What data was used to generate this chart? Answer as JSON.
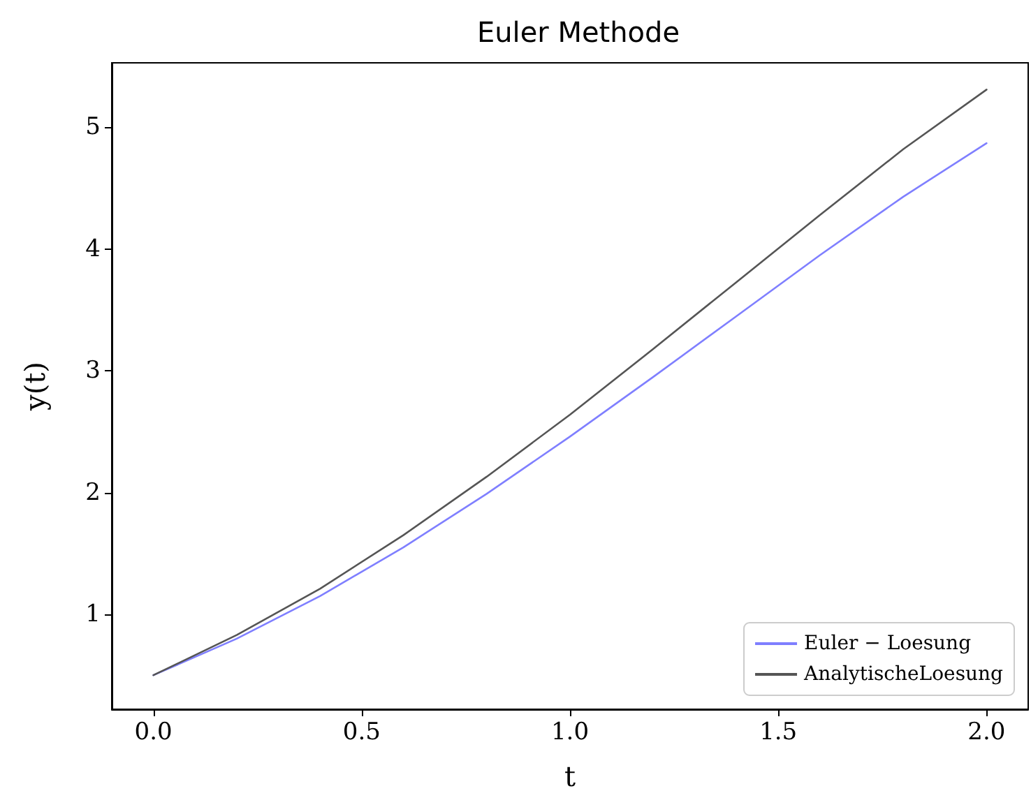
{
  "chart_data": {
    "type": "line",
    "title": "Euler Methode",
    "xlabel": "t",
    "ylabel": "y(t)",
    "x": [
      0,
      0.2,
      0.4,
      0.6,
      0.8,
      1.0,
      1.2,
      1.4,
      1.6,
      1.8,
      2.0
    ],
    "series": [
      {
        "name": "Euler − Loesung",
        "color": "#7f7fff",
        "values": [
          0.5,
          0.8,
          1.15,
          1.55,
          1.99,
          2.46,
          2.95,
          3.45,
          3.95,
          4.43,
          4.87
        ]
      },
      {
        "name": "AnalytischeLoesung",
        "color": "#555555",
        "values": [
          0.5,
          0.83,
          1.21,
          1.65,
          2.13,
          2.64,
          3.18,
          3.73,
          4.28,
          4.82,
          5.31
        ]
      }
    ],
    "xlim": [
      -0.1,
      2.1
    ],
    "ylim": [
      0.22,
      5.53
    ],
    "xticks": [
      {
        "value": 0,
        "label": "0.0"
      },
      0.5,
      {
        "value": 1,
        "label": "1.0"
      },
      1.5,
      {
        "value": 2,
        "label": "2.0"
      }
    ],
    "yticks": [
      1,
      2,
      3,
      4,
      5
    ],
    "grid": false,
    "legend": "bottom right",
    "marker": "none",
    "line_style": "solid"
  }
}
